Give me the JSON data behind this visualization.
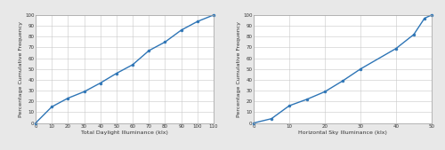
{
  "chart1": {
    "x": [
      0,
      10,
      20,
      30,
      40,
      50,
      60,
      70,
      80,
      90,
      100,
      110
    ],
    "y": [
      0,
      15,
      23,
      29,
      37,
      46,
      54,
      67,
      75,
      86,
      94,
      100
    ],
    "xlabel": "Total Daylight Illuminance (klx)",
    "ylabel": "Percentage Cumulative Frequency",
    "xlim": [
      0,
      110
    ],
    "ylim": [
      0,
      100
    ],
    "xticks": [
      0,
      10,
      20,
      30,
      40,
      50,
      60,
      70,
      80,
      90,
      100,
      110
    ],
    "yticks": [
      0,
      10,
      20,
      30,
      40,
      50,
      60,
      70,
      80,
      90,
      100
    ]
  },
  "chart2": {
    "x": [
      0,
      5,
      10,
      15,
      20,
      25,
      30,
      40,
      45,
      48,
      50
    ],
    "y": [
      0,
      4,
      16,
      22,
      29,
      39,
      50,
      69,
      82,
      97,
      100
    ],
    "xlabel": "Horizontal Sky Illuminance (klx)",
    "ylabel": "Percentage Cumulative Frequency",
    "xlim": [
      0,
      50
    ],
    "ylim": [
      0,
      100
    ],
    "xticks": [
      0,
      10,
      20,
      30,
      40,
      50
    ],
    "yticks": [
      0,
      10,
      20,
      30,
      40,
      50,
      60,
      70,
      80,
      90,
      100
    ]
  },
  "line_color": "#2e75b6",
  "marker": "o",
  "marker_size": 2.0,
  "line_width": 1.0,
  "grid_color": "#c8c8c8",
  "bg_color": "#ffffff",
  "plot_bg": "#ffffff",
  "label_fontsize": 4.5,
  "tick_fontsize": 4.0,
  "spine_color": "#a0a0a0",
  "outer_bg": "#e8e8e8"
}
